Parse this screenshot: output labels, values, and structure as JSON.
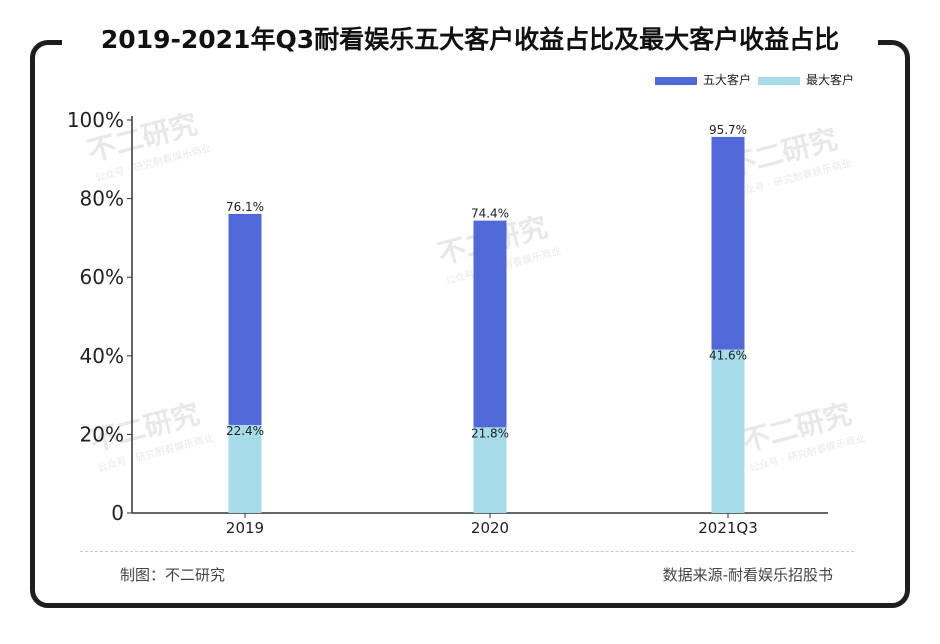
{
  "header": {
    "title": "2019-2021年Q3耐看娱乐五大客户收益占比及最大客户收益占比"
  },
  "footer": {
    "left": "制图：不二研究",
    "right": "数据来源-耐看娱乐招股书"
  },
  "watermark": {
    "main": "不二研究",
    "sub": "公众号 · 研究耐看娱乐商业"
  },
  "colors": {
    "top5": "#5068d8",
    "largest": "#a6dbea",
    "frame": "#1e1e1e"
  },
  "chart_data": {
    "type": "bar",
    "categories": [
      "2019",
      "2020",
      "2021Q3"
    ],
    "series": [
      {
        "name": "五大客户",
        "values": [
          76.1,
          74.4,
          95.7
        ],
        "labels": [
          "76.1%",
          "74.4%",
          "95.7%"
        ]
      },
      {
        "name": "最大客户",
        "values": [
          22.4,
          21.8,
          41.6
        ],
        "labels": [
          "22.4%",
          "21.8%",
          "41.6%"
        ]
      }
    ],
    "ylim": [
      0,
      100
    ],
    "yticks": [
      "0",
      "20%",
      "40%",
      "60%",
      "80%",
      "100%"
    ],
    "grid": false,
    "legend": "top-right"
  }
}
